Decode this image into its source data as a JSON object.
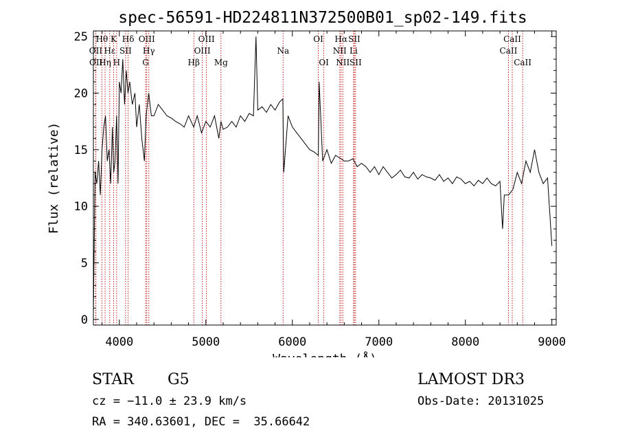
{
  "chart_data": {
    "type": "line",
    "title": "spec-56591-HD224811N372500B01_sp02-149.fits",
    "xlabel": "Wavelength (Å)",
    "ylabel": "Flux (relative)",
    "xlim": [
      3700,
      9050
    ],
    "ylim": [
      -0.5,
      25.5
    ],
    "xticks": [
      4000,
      5000,
      6000,
      7000,
      8000,
      9000
    ],
    "yticks": [
      0,
      5,
      10,
      15,
      20,
      25
    ],
    "grid": false,
    "series": [
      {
        "name": "flux",
        "x": [
          3700,
          3720,
          3740,
          3760,
          3780,
          3800,
          3820,
          3840,
          3860,
          3880,
          3900,
          3920,
          3935,
          3950,
          3968,
          3985,
          4000,
          4020,
          4040,
          4060,
          4080,
          4100,
          4120,
          4150,
          4180,
          4200,
          4230,
          4260,
          4290,
          4310,
          4340,
          4370,
          4400,
          4450,
          4500,
          4550,
          4600,
          4650,
          4700,
          4750,
          4800,
          4860,
          4900,
          4950,
          5000,
          5050,
          5100,
          5150,
          5175,
          5200,
          5250,
          5300,
          5350,
          5400,
          5450,
          5500,
          5550,
          5580,
          5600,
          5650,
          5700,
          5750,
          5800,
          5850,
          5890,
          5900,
          5950,
          6000,
          6050,
          6100,
          6150,
          6200,
          6250,
          6300,
          6310,
          6350,
          6400,
          6450,
          6500,
          6563,
          6600,
          6650,
          6700,
          6750,
          6800,
          6850,
          6900,
          6950,
          7000,
          7050,
          7100,
          7150,
          7200,
          7250,
          7300,
          7350,
          7400,
          7450,
          7500,
          7550,
          7600,
          7650,
          7700,
          7750,
          7800,
          7850,
          7900,
          7950,
          8000,
          8050,
          8100,
          8150,
          8200,
          8250,
          8300,
          8350,
          8400,
          8430,
          8450,
          8500,
          8550,
          8600,
          8650,
          8700,
          8750,
          8800,
          8850,
          8900,
          8950,
          9000
        ],
        "y": [
          0.5,
          13,
          12,
          14,
          11,
          15,
          17,
          18,
          14,
          15,
          12,
          17,
          13,
          14,
          18,
          12,
          21,
          20,
          23,
          19,
          22,
          20,
          21,
          19,
          20,
          17,
          19,
          16,
          14,
          18,
          20,
          18,
          18,
          19,
          18.5,
          18,
          17.8,
          17.5,
          17.3,
          17,
          18,
          17,
          18,
          16.5,
          17.5,
          17,
          18,
          16,
          17.5,
          16.8,
          17,
          17.5,
          17,
          18,
          17.5,
          18.2,
          18,
          25,
          18.5,
          18.8,
          18.3,
          19,
          18.5,
          19.2,
          19.5,
          13,
          18,
          17,
          16.5,
          16,
          15.5,
          15,
          14.8,
          14.5,
          21,
          14,
          15,
          13.8,
          14.5,
          14.2,
          14,
          14,
          14.2,
          13.5,
          13.8,
          13.5,
          13,
          13.5,
          12.8,
          13.5,
          13,
          12.5,
          12.8,
          13.2,
          12.6,
          12.5,
          13,
          12.4,
          12.8,
          12.6,
          12.5,
          12.3,
          12.8,
          12.2,
          12.5,
          12,
          12.6,
          12.4,
          12,
          12.2,
          11.8,
          12.3,
          12,
          12.5,
          12,
          11.8,
          12.2,
          8,
          11,
          11,
          11.5,
          13,
          12,
          14,
          13,
          15,
          13,
          12,
          12.5,
          6.5
        ]
      }
    ],
    "line_colour": "#000000",
    "marker_colour": "#c00000",
    "lines": [
      {
        "label": "OII",
        "x": 3727,
        "row": 2
      },
      {
        "label": "OII",
        "x": 3729,
        "row": 3
      },
      {
        "label": "Hθ",
        "x": 3798,
        "row": 1
      },
      {
        "label": "Hη",
        "x": 3835,
        "row": 3
      },
      {
        "label": "Hε",
        "x": 3889,
        "row": 2
      },
      {
        "label": "K",
        "x": 3934,
        "row": 1
      },
      {
        "label": "H",
        "x": 3969,
        "row": 3
      },
      {
        "label": "SII",
        "x": 4072,
        "row": 2
      },
      {
        "label": "Hδ",
        "x": 4102,
        "row": 1
      },
      {
        "label": "OIII",
        "x": 4317,
        "row": 1
      },
      {
        "label": "Hγ",
        "x": 4341,
        "row": 2
      },
      {
        "label": "G",
        "x": 4304,
        "row": 3
      },
      {
        "label": "Hβ",
        "x": 4861,
        "row": 3
      },
      {
        "label": "OIII",
        "x": 4959,
        "row": 2
      },
      {
        "label": "OIII",
        "x": 5007,
        "row": 1
      },
      {
        "label": "Mg",
        "x": 5175,
        "row": 3
      },
      {
        "label": "Na",
        "x": 5893,
        "row": 2
      },
      {
        "label": "OI",
        "x": 6300,
        "row": 1
      },
      {
        "label": "OI",
        "x": 6364,
        "row": 3
      },
      {
        "label": "Hα",
        "x": 6563,
        "row": 1
      },
      {
        "label": "NII",
        "x": 6548,
        "row": 2
      },
      {
        "label": "NII",
        "x": 6583,
        "row": 3
      },
      {
        "label": "SII",
        "x": 6716,
        "row": 1
      },
      {
        "label": "Li",
        "x": 6708,
        "row": 2
      },
      {
        "label": "SII",
        "x": 6731,
        "row": 3
      },
      {
        "label": "CaII",
        "x": 8542,
        "row": 1
      },
      {
        "label": "CaII",
        "x": 8498,
        "row": 2
      },
      {
        "label": "CaII",
        "x": 8662,
        "row": 3
      }
    ]
  },
  "info": {
    "object_class": "STAR",
    "subclass": "G5",
    "survey": "LAMOST DR3",
    "redshift": "cz = −11.0 ± 23.9 km/s",
    "obs_date": "Obs-Date: 20131025",
    "coords": "RA = 340.63601, DEC =  35.66642"
  }
}
